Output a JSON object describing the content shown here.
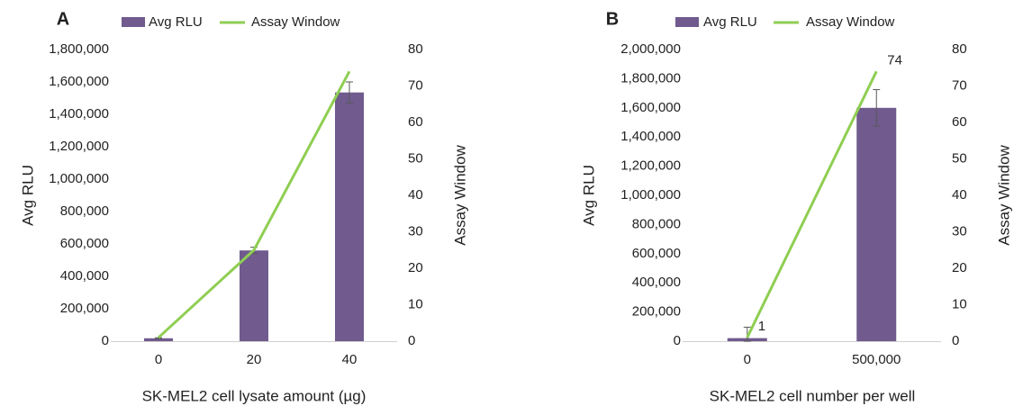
{
  "chart_data": [
    {
      "type": "bar",
      "panel_label": "A",
      "categories": [
        "0",
        "20",
        "40"
      ],
      "series": [
        {
          "name": "Avg RLU",
          "type": "bar",
          "axis": "left",
          "values": [
            18000,
            560000,
            1535000
          ],
          "errors": [
            3000,
            20000,
            65000
          ]
        },
        {
          "name": "Assay Window",
          "type": "line",
          "axis": "right",
          "values": [
            1,
            25,
            74
          ]
        }
      ],
      "xlabel": "SK-MEL2 cell lysate amount (µg)",
      "ylabel": "Avg RLU",
      "y2label": "Assay Window",
      "ylim": [
        0,
        1800000
      ],
      "yticks": [
        "0",
        "200,000",
        "400,000",
        "600,000",
        "800,000",
        "1,000,000",
        "1,200,000",
        "1,400,000",
        "1,600,000",
        "1,800,000"
      ],
      "y2lim": [
        0,
        80
      ],
      "y2ticks": [
        "0",
        "10",
        "20",
        "30",
        "40",
        "50",
        "60",
        "70",
        "80"
      ],
      "data_labels": [],
      "legend_position": "top",
      "grid": false
    },
    {
      "type": "bar",
      "panel_label": "B",
      "categories": [
        "0",
        "500,000"
      ],
      "series": [
        {
          "name": "Avg RLU",
          "type": "bar",
          "axis": "left",
          "values": [
            21000,
            1600000
          ],
          "errors": [
            75000,
            125000
          ]
        },
        {
          "name": "Assay Window",
          "type": "line",
          "axis": "right",
          "values": [
            1,
            74
          ]
        }
      ],
      "xlabel": "SK-MEL2 cell number per well",
      "ylabel": "Avg RLU",
      "y2label": "Assay Window",
      "ylim": [
        0,
        2000000
      ],
      "yticks": [
        "0",
        "200,000",
        "400,000",
        "600,000",
        "800,000",
        "1,000,000",
        "1,200,000",
        "1,400,000",
        "1,600,000",
        "1,800,000",
        "2,000,000"
      ],
      "y2lim": [
        0,
        80
      ],
      "y2ticks": [
        "0",
        "10",
        "20",
        "30",
        "40",
        "50",
        "60",
        "70",
        "80"
      ],
      "data_labels": [
        "1",
        "74"
      ],
      "legend_position": "top",
      "grid": false
    }
  ],
  "colors": {
    "bar": "#705a8e",
    "line": "#8fce52",
    "axis": "#d0d0d0",
    "text": "#222222",
    "error": "#595959"
  }
}
